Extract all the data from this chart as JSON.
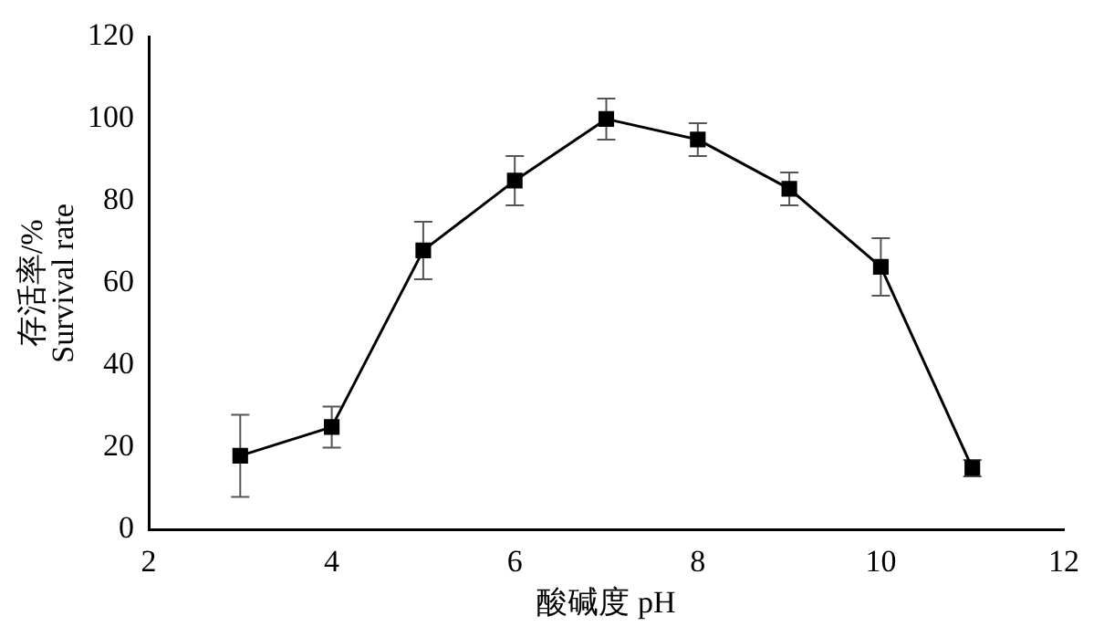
{
  "chart_data": {
    "type": "line",
    "xlabel": "酸碱度 pH",
    "ylabel": "存活率/% Survival rate",
    "x": [
      3,
      4,
      5,
      6,
      7,
      8,
      9,
      10,
      11
    ],
    "series": [
      {
        "color": "#000000",
        "values": [
          18,
          25,
          68,
          85,
          100,
          95,
          83,
          64,
          15
        ],
        "errors": [
          10,
          5,
          7,
          6,
          5,
          4,
          4,
          7,
          2
        ]
      }
    ],
    "xlim": [
      2,
      12
    ],
    "xticks": [
      2,
      4,
      6,
      8,
      10,
      12
    ],
    "ylim": [
      0,
      120
    ],
    "yticks": [
      0,
      20,
      40,
      60,
      80,
      100,
      120
    ],
    "grid": false,
    "legend": false,
    "marker": "square",
    "line_style": "solid"
  }
}
